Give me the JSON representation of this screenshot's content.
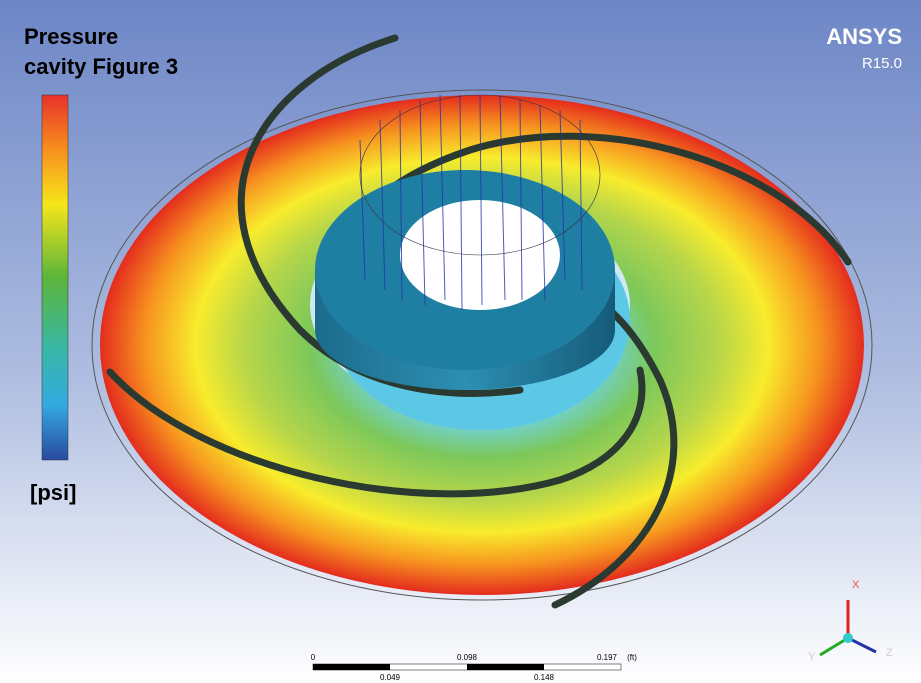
{
  "legend": {
    "title_line1": "Pressure",
    "title_line2": "cavity Figure 3",
    "unit": "[psi]"
  },
  "brand": {
    "name": "ANSYS",
    "version": "R15.0"
  },
  "scale_bar": {
    "top_labels": [
      "0",
      "0.098",
      "0.197"
    ],
    "unit": "(ft)",
    "bottom_labels": [
      "0.049",
      "0.148"
    ]
  },
  "triad": {
    "x": "X",
    "y": "Y",
    "z": "Z"
  }
}
